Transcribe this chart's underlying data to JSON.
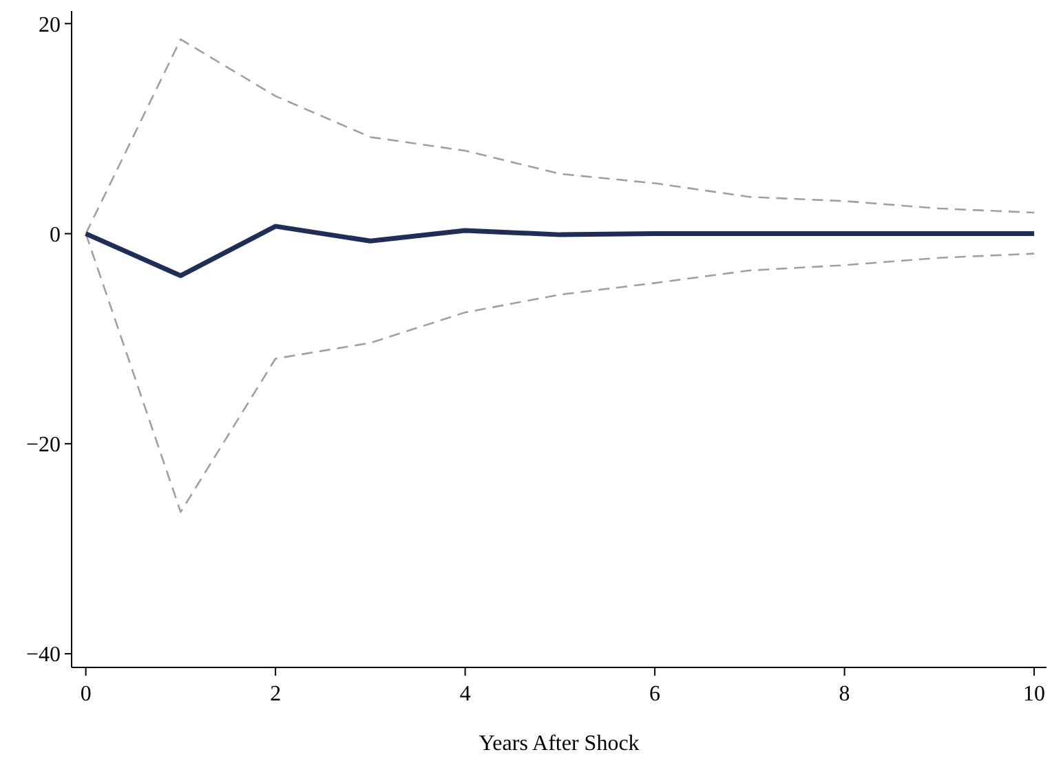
{
  "chart_data": {
    "type": "line",
    "xlabel": "Years After Shock",
    "x": [
      0,
      1,
      2,
      3,
      4,
      5,
      6,
      7,
      8,
      9,
      10
    ],
    "series": [
      {
        "color": "#a0a0a0",
        "line_style": "dashed",
        "values": [
          0,
          18.5,
          13.1,
          9.2,
          7.9,
          5.7,
          4.8,
          3.5,
          3.1,
          2.4,
          2.0
        ]
      },
      {
        "color": "#a0a0a0",
        "line_style": "dashed",
        "values": [
          0,
          -26.5,
          -11.9,
          -10.4,
          -7.5,
          -5.8,
          -4.7,
          -3.5,
          -3.0,
          -2.3,
          -1.9
        ]
      },
      {
        "color": "#1f2d57",
        "values": [
          0,
          -4.0,
          0.7,
          -0.7,
          0.3,
          -0.1,
          0,
          0,
          0,
          0,
          0
        ]
      }
    ],
    "xlim": [
      -0.15,
      10.13
    ],
    "ylim": [
      -41.3,
      21.2
    ],
    "xticks": [
      0,
      2,
      4,
      6,
      8,
      10
    ],
    "yticks": [
      {
        "value": -40,
        "label": "−40"
      },
      {
        "value": -20,
        "label": "−20"
      },
      0,
      20
    ],
    "grid": false,
    "line_style": "solid",
    "marker": "none"
  }
}
